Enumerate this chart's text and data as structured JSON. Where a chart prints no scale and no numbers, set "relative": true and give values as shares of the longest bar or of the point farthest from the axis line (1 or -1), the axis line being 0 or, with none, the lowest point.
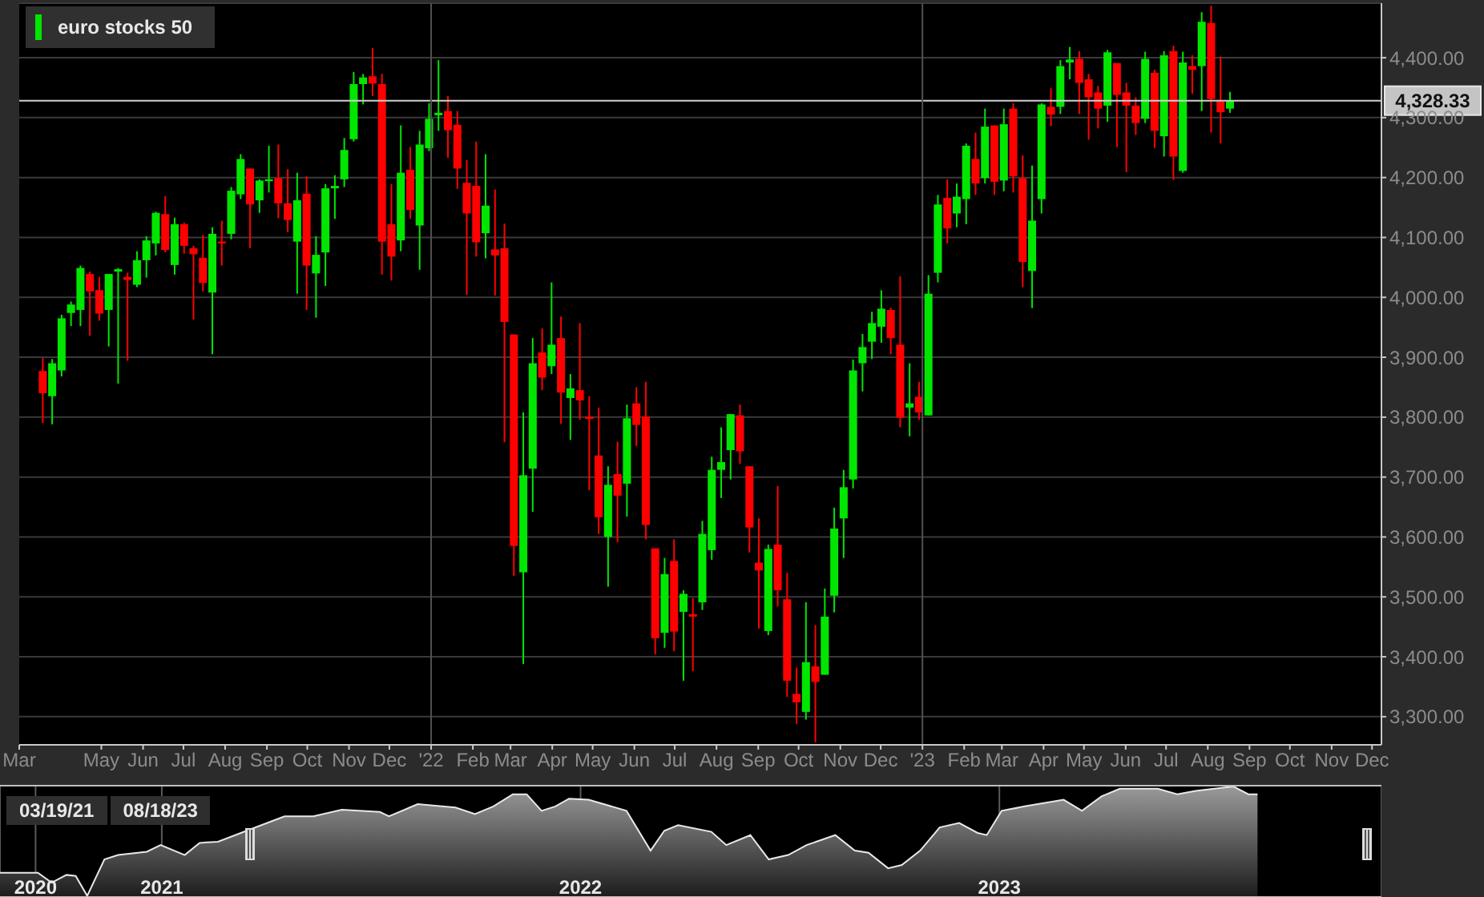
{
  "chart_data": [
    {
      "type": "candlestick",
      "legend": "top left",
      "grid": "y",
      "x": [
        "2021-03-19",
        "2021-03-26",
        "2021-04-02",
        "2021-04-09",
        "2021-04-16",
        "2021-04-23",
        "2021-04-30",
        "2021-05-07",
        "2021-05-14",
        "2021-05-21",
        "2021-05-28",
        "2021-06-04",
        "2021-06-11",
        "2021-06-18",
        "2021-06-25",
        "2021-07-02",
        "2021-07-09",
        "2021-07-16",
        "2021-07-23",
        "2021-07-30",
        "2021-08-06",
        "2021-08-13",
        "2021-08-20",
        "2021-08-27",
        "2021-09-03",
        "2021-09-10",
        "2021-09-17",
        "2021-09-24",
        "2021-10-01",
        "2021-10-08",
        "2021-10-15",
        "2021-10-22",
        "2021-10-29",
        "2021-11-05",
        "2021-11-12",
        "2021-11-19",
        "2021-11-26",
        "2021-12-03",
        "2021-12-10",
        "2021-12-17",
        "2021-12-24",
        "2021-12-31",
        "2022-01-07",
        "2022-01-14",
        "2022-01-21",
        "2022-01-28",
        "2022-02-04",
        "2022-02-11",
        "2022-02-18",
        "2022-02-25",
        "2022-03-04",
        "2022-03-11",
        "2022-03-18",
        "2022-03-25",
        "2022-04-01",
        "2022-04-08",
        "2022-04-15",
        "2022-04-22",
        "2022-04-29",
        "2022-05-06",
        "2022-05-13",
        "2022-05-20",
        "2022-05-27",
        "2022-06-03",
        "2022-06-10",
        "2022-06-17",
        "2022-06-24",
        "2022-07-01",
        "2022-07-08",
        "2022-07-15",
        "2022-07-22",
        "2022-07-29",
        "2022-08-05",
        "2022-08-12",
        "2022-08-19",
        "2022-08-26",
        "2022-09-02",
        "2022-09-09",
        "2022-09-16",
        "2022-09-23",
        "2022-09-30",
        "2022-10-07",
        "2022-10-14",
        "2022-10-21",
        "2022-10-28",
        "2022-11-04",
        "2022-11-11",
        "2022-11-18",
        "2022-11-25",
        "2022-12-02",
        "2022-12-09",
        "2022-12-16",
        "2022-12-23",
        "2022-12-30",
        "2023-01-06",
        "2023-01-13",
        "2023-01-20",
        "2023-01-27",
        "2023-02-03",
        "2023-02-10",
        "2023-02-17",
        "2023-02-24",
        "2023-03-03",
        "2023-03-10",
        "2023-03-17",
        "2023-03-24",
        "2023-03-31",
        "2023-04-07",
        "2023-04-14",
        "2023-04-21",
        "2023-04-28",
        "2023-05-05",
        "2023-05-12",
        "2023-05-19",
        "2023-05-26",
        "2023-06-02",
        "2023-06-09",
        "2023-06-16",
        "2023-06-23",
        "2023-06-30",
        "2023-07-07",
        "2023-07-14",
        "2023-07-21",
        "2023-07-28",
        "2023-08-04",
        "2023-08-11",
        "2023-08-18"
      ],
      "series": [
        {
          "name": "euro stocks 50",
          "color": "#00e600",
          "colors": [
            "#ff0000",
            "#00e600",
            "#00e600",
            "#00e600",
            "#00e600",
            "#ff0000",
            "#ff0000",
            "#00e600",
            "#00e600",
            "#ff0000",
            "#00e600",
            "#00e600",
            "#00e600",
            "#ff0000",
            "#00e600",
            "#ff0000",
            "#ff0000",
            "#ff0000",
            "#00e600",
            "#ff0000",
            "#00e600",
            "#00e600",
            "#ff0000",
            "#00e600",
            "#00e600",
            "#ff0000",
            "#ff0000",
            "#00e600",
            "#ff0000",
            "#00e600",
            "#00e600",
            "#00e600",
            "#00e600",
            "#00e600",
            "#00e600",
            "#ff0000",
            "#ff0000",
            "#ff0000",
            "#00e600",
            "#ff0000",
            "#00e600",
            "#00e600",
            "#00e600",
            "#ff0000",
            "#ff0000",
            "#ff0000",
            "#ff0000",
            "#00e600",
            "#ff0000",
            "#ff0000",
            "#ff0000",
            "#00e600",
            "#00e600",
            "#ff0000",
            "#00e600",
            "#ff0000",
            "#00e600",
            "#ff0000",
            "#ff0000",
            "#ff0000",
            "#00e600",
            "#ff0000",
            "#00e600",
            "#ff0000",
            "#ff0000",
            "#ff0000",
            "#00e600",
            "#ff0000",
            "#00e600",
            "#ff0000",
            "#00e600",
            "#00e600",
            "#00e600",
            "#00e600",
            "#ff0000",
            "#ff0000",
            "#ff0000",
            "#00e600",
            "#ff0000",
            "#ff0000",
            "#ff0000",
            "#00e600",
            "#ff0000",
            "#00e600",
            "#00e600",
            "#00e600",
            "#00e600",
            "#00e600",
            "#00e600",
            "#00e600",
            "#ff0000",
            "#ff0000",
            "#00e600",
            "#ff0000",
            "#00e600",
            "#00e600",
            "#ff0000",
            "#00e600",
            "#00e600",
            "#ff0000",
            "#00e600",
            "#ff0000",
            "#00e600",
            "#ff0000",
            "#ff0000",
            "#00e600",
            "#00e600",
            "#ff0000",
            "#00e600",
            "#00e600",
            "#ff0000",
            "#ff0000",
            "#ff0000",
            "#00e600",
            "#ff0000",
            "#ff0000",
            "#ff0000",
            "#00e600",
            "#ff0000",
            "#00e600",
            "#ff0000",
            "#00e600",
            "#ff0000",
            "#00e600",
            "#ff0000",
            "#ff0000",
            "#00e600"
          ],
          "ohlc": [
            [
              3877,
              3899,
              3790,
              3840
            ],
            [
              3835,
              3897,
              3788,
              3890
            ],
            [
              3878,
              3971,
              3868,
              3965
            ],
            [
              3974,
              3993,
              3952,
              3988
            ],
            [
              3979,
              4053,
              3952,
              4049
            ],
            [
              4039,
              4043,
              3936,
              4010
            ],
            [
              4012,
              4034,
              3961,
              3973
            ],
            [
              3979,
              4039,
              3918,
              4039
            ],
            [
              4043,
              4049,
              3856,
              4047
            ],
            [
              4034,
              4041,
              3894,
              4029
            ],
            [
              4021,
              4077,
              4017,
              4062
            ],
            [
              4062,
              4102,
              4033,
              4095
            ],
            [
              4090,
              4143,
              4070,
              4141
            ],
            [
              4139,
              4169,
              4075,
              4079
            ],
            [
              4054,
              4133,
              4038,
              4122
            ],
            [
              4122,
              4125,
              4073,
              4086
            ],
            [
              4082,
              4086,
              3963,
              4072
            ],
            [
              4066,
              4104,
              4010,
              4024
            ],
            [
              4008,
              4117,
              3905,
              4106
            ],
            [
              4093,
              4128,
              4053,
              4090
            ],
            [
              4106,
              4184,
              4097,
              4178
            ],
            [
              4172,
              4239,
              4164,
              4231
            ],
            [
              4215,
              4215,
              4082,
              4155
            ],
            [
              4162,
              4197,
              4141,
              4195
            ],
            [
              4194,
              4253,
              4175,
              4197
            ],
            [
              4199,
              4255,
              4132,
              4157
            ],
            [
              4157,
              4214,
              4109,
              4129
            ],
            [
              4093,
              4208,
              4006,
              4162
            ],
            [
              4173,
              4202,
              3979,
              4053
            ],
            [
              4040,
              4102,
              3966,
              4071
            ],
            [
              4075,
              4189,
              4019,
              4182
            ],
            [
              4182,
              4204,
              4131,
              4186
            ],
            [
              4197,
              4266,
              4184,
              4246
            ],
            [
              4264,
              4376,
              4260,
              4356
            ],
            [
              4356,
              4373,
              4322,
              4367
            ],
            [
              4369,
              4416,
              4336,
              4357
            ],
            [
              4356,
              4373,
              4038,
              4093
            ],
            [
              4122,
              4189,
              4028,
              4068
            ],
            [
              4095,
              4287,
              4077,
              4208
            ],
            [
              4213,
              4251,
              4131,
              4146
            ],
            [
              4120,
              4278,
              4046,
              4255
            ],
            [
              4249,
              4324,
              4244,
              4298
            ],
            [
              4304,
              4396,
              4278,
              4308
            ],
            [
              4311,
              4336,
              4233,
              4279
            ],
            [
              4288,
              4311,
              4181,
              4215
            ],
            [
              4191,
              4229,
              4004,
              4140
            ],
            [
              4186,
              4260,
              4068,
              4092
            ],
            [
              4107,
              4239,
              4065,
              4153
            ],
            [
              4080,
              4180,
              4003,
              4070
            ],
            [
              4082,
              4123,
              3758,
              3959
            ],
            [
              3938,
              3938,
              3535,
              3585
            ],
            [
              3541,
              3808,
              3388,
              3703
            ],
            [
              3714,
              3932,
              3642,
              3890
            ],
            [
              3908,
              3948,
              3845,
              3866
            ],
            [
              3885,
              4025,
              3872,
              3921
            ],
            [
              3932,
              3968,
              3789,
              3841
            ],
            [
              3832,
              3872,
              3762,
              3848
            ],
            [
              3845,
              3957,
              3796,
              3828
            ],
            [
              3801,
              3835,
              3678,
              3797
            ],
            [
              3736,
              3816,
              3605,
              3633
            ],
            [
              3600,
              3718,
              3517,
              3687
            ],
            [
              3705,
              3759,
              3591,
              3669
            ],
            [
              3689,
              3821,
              3634,
              3798
            ],
            [
              3823,
              3850,
              3752,
              3787
            ],
            [
              3801,
              3859,
              3596,
              3620
            ],
            [
              3581,
              3581,
              3404,
              3431
            ],
            [
              3440,
              3565,
              3415,
              3538
            ],
            [
              3560,
              3596,
              3409,
              3442
            ],
            [
              3475,
              3511,
              3360,
              3505
            ],
            [
              3471,
              3498,
              3376,
              3467
            ],
            [
              3491,
              3627,
              3478,
              3605
            ],
            [
              3578,
              3734,
              3562,
              3712
            ],
            [
              3712,
              3783,
              3665,
              3725
            ],
            [
              3745,
              3805,
              3696,
              3805
            ],
            [
              3803,
              3821,
              3722,
              3743
            ],
            [
              3718,
              3718,
              3574,
              3616
            ],
            [
              3557,
              3631,
              3447,
              3544
            ],
            [
              3443,
              3587,
              3436,
              3580
            ],
            [
              3587,
              3685,
              3484,
              3511
            ],
            [
              3496,
              3540,
              3333,
              3360
            ],
            [
              3338,
              3382,
              3288,
              3324
            ],
            [
              3308,
              3491,
              3295,
              3391
            ],
            [
              3384,
              3453,
              3257,
              3358
            ],
            [
              3370,
              3514,
              3370,
              3467
            ],
            [
              3502,
              3649,
              3474,
              3614
            ],
            [
              3631,
              3712,
              3565,
              3683
            ],
            [
              3696,
              3896,
              3681,
              3878
            ],
            [
              3890,
              3939,
              3843,
              3917
            ],
            [
              3926,
              3976,
              3897,
              3957
            ],
            [
              3951,
              4012,
              3924,
              3981
            ],
            [
              3979,
              3983,
              3905,
              3932
            ],
            [
              3921,
              4035,
              3783,
              3799
            ],
            [
              3816,
              3890,
              3768,
              3823
            ],
            [
              3834,
              3859,
              3796,
              3808
            ],
            [
              3803,
              4037,
              3803,
              4006
            ],
            [
              4041,
              4171,
              4025,
              4155
            ],
            [
              4166,
              4197,
              4090,
              4115
            ],
            [
              4140,
              4190,
              4117,
              4168
            ],
            [
              4164,
              4257,
              4122,
              4253
            ],
            [
              4231,
              4275,
              4171,
              4190
            ],
            [
              4199,
              4315,
              4190,
              4285
            ],
            [
              4287,
              4287,
              4171,
              4193
            ],
            [
              4195,
              4315,
              4177,
              4289
            ],
            [
              4315,
              4324,
              4175,
              4202
            ],
            [
              4199,
              4237,
              4017,
              4059
            ],
            [
              4044,
              4220,
              3982,
              4128
            ],
            [
              4164,
              4324,
              4140,
              4322
            ],
            [
              4318,
              4349,
              4286,
              4305
            ],
            [
              4318,
              4396,
              4306,
              4386
            ],
            [
              4392,
              4418,
              4364,
              4397
            ],
            [
              4398,
              4411,
              4306,
              4358
            ],
            [
              4364,
              4373,
              4263,
              4334
            ],
            [
              4342,
              4353,
              4282,
              4315
            ],
            [
              4320,
              4413,
              4293,
              4409
            ],
            [
              4391,
              4391,
              4251,
              4338
            ],
            [
              4342,
              4358,
              4209,
              4320
            ],
            [
              4320,
              4334,
              4271,
              4291
            ],
            [
              4298,
              4410,
              4291,
              4398
            ],
            [
              4375,
              4380,
              4249,
              4278
            ],
            [
              4269,
              4411,
              4235,
              4404
            ],
            [
              4411,
              4420,
              4196,
              4235
            ],
            [
              4211,
              4410,
              4208,
              4392
            ],
            [
              4386,
              4404,
              4340,
              4380
            ],
            [
              4386,
              4476,
              4311,
              4460
            ],
            [
              4458,
              4487,
              4275,
              4331
            ],
            [
              4327,
              4402,
              4257,
              4309
            ],
            [
              4315,
              4343,
              4308,
              4328.33
            ]
          ]
        }
      ],
      "xlim": [
        "2021-03-01",
        "2023-12-08"
      ],
      "xticks": [
        {
          "value": "2021-03-01",
          "label": "Mar"
        },
        {
          "value": "2021-05-01",
          "label": "May"
        },
        {
          "value": "2021-06-01",
          "label": "Jun"
        },
        {
          "value": "2021-07-01",
          "label": "Jul"
        },
        {
          "value": "2021-08-01",
          "label": "Aug"
        },
        {
          "value": "2021-09-01",
          "label": "Sep"
        },
        {
          "value": "2021-10-01",
          "label": "Oct"
        },
        {
          "value": "2021-11-01",
          "label": "Nov"
        },
        {
          "value": "2021-12-01",
          "label": "Dec"
        },
        {
          "value": "2022-01-01",
          "label": "'22"
        },
        {
          "value": "2022-02-01",
          "label": "Feb"
        },
        {
          "value": "2022-03-01",
          "label": "Mar"
        },
        {
          "value": "2022-04-01",
          "label": "Apr"
        },
        {
          "value": "2022-05-01",
          "label": "May"
        },
        {
          "value": "2022-06-01",
          "label": "Jun"
        },
        {
          "value": "2022-07-01",
          "label": "Jul"
        },
        {
          "value": "2022-08-01",
          "label": "Aug"
        },
        {
          "value": "2022-09-01",
          "label": "Sep"
        },
        {
          "value": "2022-10-01",
          "label": "Oct"
        },
        {
          "value": "2022-11-01",
          "label": "Nov"
        },
        {
          "value": "2022-12-01",
          "label": "Dec"
        },
        {
          "value": "2023-01-01",
          "label": "'23"
        },
        {
          "value": "2023-02-01",
          "label": "Feb"
        },
        {
          "value": "2023-03-01",
          "label": "Mar"
        },
        {
          "value": "2023-04-01",
          "label": "Apr"
        },
        {
          "value": "2023-05-01",
          "label": "May"
        },
        {
          "value": "2023-06-01",
          "label": "Jun"
        },
        {
          "value": "2023-07-01",
          "label": "Jul"
        },
        {
          "value": "2023-08-01",
          "label": "Aug"
        },
        {
          "value": "2023-09-01",
          "label": "Sep"
        },
        {
          "value": "2023-10-01",
          "label": "Oct"
        },
        {
          "value": "2023-11-01",
          "label": "Nov"
        },
        {
          "value": "2023-12-01",
          "label": "Dec"
        }
      ],
      "ylim": [
        3253,
        4491
      ],
      "yticks": [
        {
          "value": 3300,
          "label": "3,300.00"
        },
        {
          "value": 3400,
          "label": "3,400.00"
        },
        {
          "value": 3500,
          "label": "3,500.00"
        },
        {
          "value": 3600,
          "label": "3,600.00"
        },
        {
          "value": 3700,
          "label": "3,700.00"
        },
        {
          "value": 3800,
          "label": "3,800.00"
        },
        {
          "value": 3900,
          "label": "3,900.00"
        },
        {
          "value": 4000,
          "label": "4,000.00"
        },
        {
          "value": 4100,
          "label": "4,100.00"
        },
        {
          "value": 4200,
          "label": "4,200.00"
        },
        {
          "value": 4300,
          "label": "4,300.00"
        },
        {
          "value": 4400,
          "label": "4,400.00"
        }
      ],
      "ref_lines": [
        {
          "axis": "y",
          "value": 4328.33,
          "label": "4,328.33",
          "color": "#d0d0d0"
        },
        {
          "axis": "x",
          "value": "2022-01-01",
          "color": "#505050"
        },
        {
          "axis": "x",
          "value": "2023-01-01",
          "color": "#505050"
        }
      ]
    },
    {
      "type": "area",
      "relative": true,
      "grid": "x",
      "x": [
        "2020-08-13",
        "2020-09-15",
        "2020-09-27",
        "2020-10-10",
        "2020-10-18",
        "2020-10-28",
        "2020-11-12",
        "2020-11-24",
        "2020-12-19",
        "2020-12-31",
        "2021-01-21",
        "2021-02-03",
        "2021-02-19",
        "2021-03-16",
        "2021-04-18",
        "2021-05-13",
        "2021-06-07",
        "2021-07-10",
        "2021-07-18",
        "2021-08-12",
        "2021-09-14",
        "2021-10-01",
        "2021-10-17",
        "2021-11-03",
        "2021-11-15",
        "2021-11-28",
        "2021-12-10",
        "2021-12-22",
        "2022-01-08",
        "2022-02-10",
        "2022-03-03",
        "2022-03-15",
        "2022-03-27",
        "2022-04-25",
        "2022-05-08",
        "2022-05-29",
        "2022-06-14",
        "2022-07-01",
        "2022-07-17",
        "2022-08-11",
        "2022-08-28",
        "2022-09-09",
        "2022-09-26",
        "2022-10-08",
        "2022-10-24",
        "2022-11-10",
        "2022-11-27",
        "2022-12-13",
        "2022-12-21",
        "2023-01-03",
        "2023-01-23",
        "2023-02-26",
        "2023-03-14",
        "2023-03-31",
        "2023-04-16",
        "2023-05-19",
        "2023-06-05",
        "2023-06-21",
        "2023-07-24",
        "2023-08-06",
        "2023-08-14"
      ],
      "series": [
        {
          "color": "#9a9a9a",
          "values": [
            0.22,
            0.22,
            0.13,
            0.2,
            0.19,
            0.01,
            0.34,
            0.38,
            0.41,
            0.47,
            0.38,
            0.49,
            0.5,
            0.6,
            0.73,
            0.73,
            0.79,
            0.77,
            0.73,
            0.84,
            0.81,
            0.75,
            0.82,
            0.93,
            0.93,
            0.78,
            0.82,
            0.89,
            0.88,
            0.78,
            0.42,
            0.6,
            0.65,
            0.59,
            0.47,
            0.56,
            0.34,
            0.38,
            0.47,
            0.56,
            0.42,
            0.4,
            0.26,
            0.29,
            0.42,
            0.63,
            0.67,
            0.58,
            0.56,
            0.78,
            0.82,
            0.88,
            0.78,
            0.91,
            0.98,
            0.98,
            0.93,
            0.96,
            1,
            0.93,
            0.93
          ]
        }
      ],
      "xlim": [
        "2020-08-13",
        "2023-11-30"
      ],
      "xticks": [
        {
          "value": "2020-09-13",
          "label": "2020"
        },
        {
          "value": "2021-01-01",
          "label": "2021"
        },
        {
          "value": "2022-01-01",
          "label": "2022"
        },
        {
          "value": "2023-01-01",
          "label": "2023"
        }
      ],
      "annotations": [
        "03/19/21",
        "08/18/23"
      ]
    }
  ]
}
